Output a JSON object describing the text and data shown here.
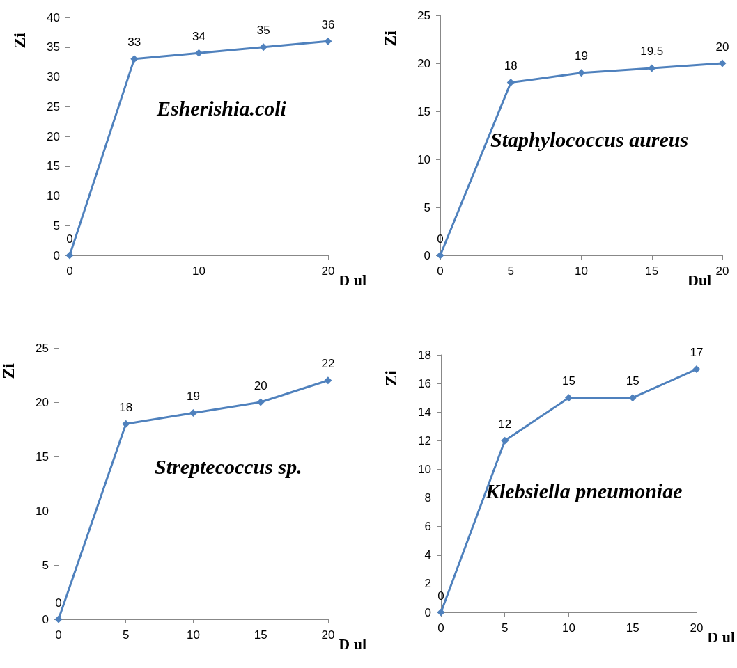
{
  "chart_data": [
    {
      "type": "line",
      "xlabel": "D ul",
      "ylabel": "Zi",
      "annotations": [
        "Esherishia.coli"
      ],
      "x": [
        0,
        5,
        10,
        15,
        20
      ],
      "series": [
        {
          "color": "#4f81bd",
          "values": [
            0,
            33,
            34,
            35,
            36
          ]
        }
      ],
      "xlim": [
        0,
        20
      ],
      "xticks": [
        0,
        10,
        20
      ],
      "ylim": [
        0,
        40
      ],
      "yticks": [
        0,
        5,
        10,
        15,
        20,
        25,
        30,
        35,
        40
      ],
      "marker": "diamond",
      "line_style": "solid",
      "data_labels": true,
      "grid": false
    },
    {
      "type": "line",
      "xlabel": "Dul",
      "ylabel": "Zi",
      "annotations": [
        "Staphylococcus aureus"
      ],
      "x": [
        0,
        5,
        10,
        15,
        20
      ],
      "series": [
        {
          "color": "#4f81bd",
          "values": [
            0,
            18,
            19,
            19.5,
            20
          ]
        }
      ],
      "xlim": [
        0,
        20
      ],
      "xticks": [
        0,
        5,
        10,
        15,
        20
      ],
      "ylim": [
        0,
        25
      ],
      "yticks": [
        0,
        5,
        10,
        15,
        20,
        25
      ],
      "marker": "diamond",
      "line_style": "solid",
      "data_labels": true,
      "grid": false
    },
    {
      "type": "line",
      "xlabel": "D ul",
      "ylabel": "Zi",
      "annotations": [
        "Streptecoccus sp."
      ],
      "x": [
        0,
        5,
        10,
        15,
        20
      ],
      "series": [
        {
          "color": "#4f81bd",
          "values": [
            0,
            18,
            19,
            20,
            22
          ]
        }
      ],
      "xlim": [
        0,
        20
      ],
      "xticks": [
        0,
        5,
        10,
        15,
        20
      ],
      "ylim": [
        0,
        25
      ],
      "yticks": [
        0,
        5,
        10,
        15,
        20,
        25
      ],
      "marker": "diamond",
      "line_style": "solid",
      "data_labels": true,
      "grid": false
    },
    {
      "type": "line",
      "xlabel": "D ul",
      "ylabel": "Zi",
      "annotations": [
        "Klebsiella pneumoniae"
      ],
      "x": [
        0,
        5,
        10,
        15,
        20
      ],
      "series": [
        {
          "color": "#4f81bd",
          "values": [
            0,
            12,
            15,
            15,
            17
          ]
        }
      ],
      "xlim": [
        0,
        20
      ],
      "xticks": [
        0,
        5,
        10,
        15,
        20
      ],
      "ylim": [
        0,
        18
      ],
      "yticks": [
        0,
        2,
        4,
        6,
        8,
        10,
        12,
        14,
        16,
        18
      ],
      "marker": "diamond",
      "line_style": "solid",
      "data_labels": true,
      "grid": false
    }
  ]
}
